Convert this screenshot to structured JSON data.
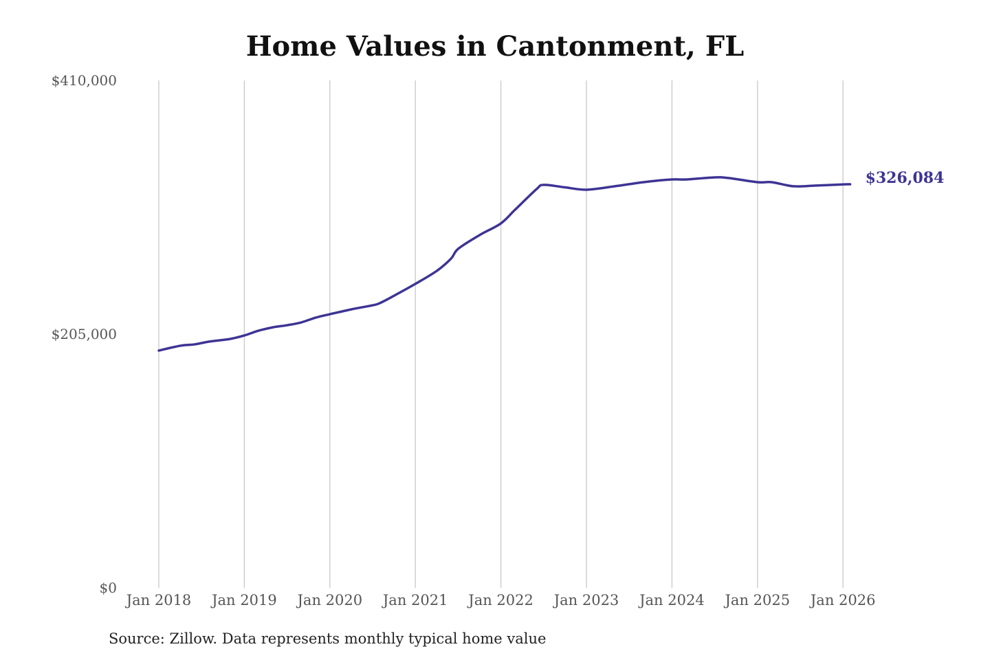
{
  "chart_data": {
    "type": "line",
    "title": "Home Values in Cantonment, FL",
    "xlabel": "",
    "ylabel": "",
    "ylim": [
      0,
      410000
    ],
    "y_ticks": [
      0,
      205000,
      410000
    ],
    "y_tick_labels": [
      "$0",
      "$205,000",
      "$410,000"
    ],
    "x_ticks": [
      "2018-01",
      "2019-01",
      "2020-01",
      "2021-01",
      "2022-01",
      "2023-01",
      "2024-01",
      "2025-01",
      "2026-01"
    ],
    "x_tick_labels": [
      "Jan 2018",
      "Jan 2019",
      "Jan 2020",
      "Jan 2021",
      "Jan 2022",
      "Jan 2023",
      "Jan 2024",
      "Jan 2025",
      "Jan 2026"
    ],
    "grid": "vertical",
    "line_color": "#3d3494",
    "end_label": "$326,084",
    "series": [
      {
        "points": [
          [
            "2018-01",
            191700
          ],
          [
            "2018-04",
            195600
          ],
          [
            "2018-06",
            196700
          ],
          [
            "2018-08",
            198900
          ],
          [
            "2018-11",
            201100
          ],
          [
            "2019-01",
            203900
          ],
          [
            "2019-03",
            207800
          ],
          [
            "2019-05",
            210500
          ],
          [
            "2019-07",
            212200
          ],
          [
            "2019-09",
            214500
          ],
          [
            "2019-11",
            218300
          ],
          [
            "2020-01",
            221100
          ],
          [
            "2020-04",
            225000
          ],
          [
            "2020-07",
            228300
          ],
          [
            "2020-08",
            230000
          ],
          [
            "2020-10",
            236000
          ],
          [
            "2021-01",
            245600
          ],
          [
            "2021-04",
            256100
          ],
          [
            "2021-06",
            266000
          ],
          [
            "2021-07",
            273900
          ],
          [
            "2021-10",
            285000
          ],
          [
            "2022-01",
            294500
          ],
          [
            "2022-03",
            305600
          ],
          [
            "2022-06",
            322200
          ],
          [
            "2022-07",
            325600
          ],
          [
            "2022-10",
            323600
          ],
          [
            "2023-01",
            321700
          ],
          [
            "2023-05",
            324500
          ],
          [
            "2023-09",
            327800
          ],
          [
            "2024-01",
            330000
          ],
          [
            "2024-03",
            330000
          ],
          [
            "2024-07",
            331700
          ],
          [
            "2024-09",
            331100
          ],
          [
            "2025-01",
            327800
          ],
          [
            "2025-03",
            327800
          ],
          [
            "2025-06",
            324500
          ],
          [
            "2025-09",
            325000
          ],
          [
            "2026-01",
            326000
          ],
          [
            "2026-02",
            326084
          ]
        ]
      }
    ]
  },
  "source": "Source: Zillow. Data represents monthly typical home value"
}
